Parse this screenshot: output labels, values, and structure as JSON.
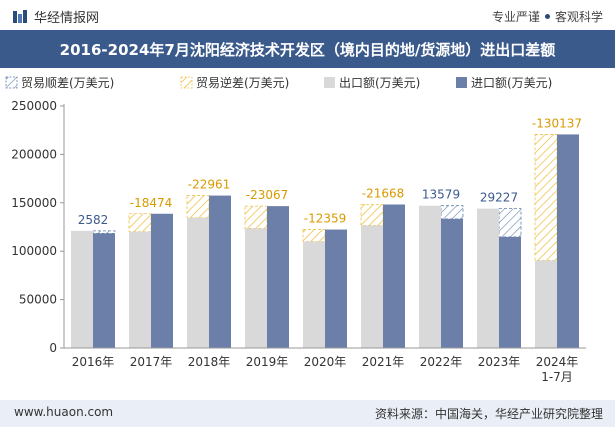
{
  "header": {
    "brand": "华经情报网",
    "tagline_left": "专业严谨",
    "tagline_right": "客观科学"
  },
  "footer": {
    "website": "www.huaon.com",
    "source": "资料来源：中国海关，华经产业研究院整理"
  },
  "colors": {
    "export": "#d9d9d9",
    "import": "#6b7fa8",
    "surplus": "#5f7fae",
    "deficit": "#f0c24a",
    "titlebar": "#3b5a8c"
  },
  "chart_data": {
    "type": "bar",
    "title": "2016-2024年7月沈阳经济技术开发区（境内目的地/货源地）进出口差额",
    "unit": "万美元",
    "categories": [
      "2016年",
      "2017年",
      "2018年",
      "2019年",
      "2020年",
      "2021年",
      "2022年",
      "2023年",
      "2024年\n1-7月"
    ],
    "ylim": [
      0,
      250000
    ],
    "yticks": [
      0,
      50000,
      100000,
      150000,
      200000,
      250000
    ],
    "legend": [
      "贸易顺差(万美元)",
      "贸易逆差(万美元)",
      "出口额(万美元)",
      "进口额(万美元)"
    ],
    "legend_position": "top-left",
    "series": [
      {
        "name": "出口额(万美元)",
        "values": [
          121000,
          120200,
          134500,
          123500,
          110000,
          126600,
          147000,
          144000,
          90500
        ]
      },
      {
        "name": "进口额(万美元)",
        "values": [
          118418,
          138674,
          157461,
          146567,
          122359,
          148268,
          133421,
          114773,
          220637
        ]
      }
    ],
    "balance": [
      2582,
      -18474,
      -22961,
      -23067,
      -12359,
      -21668,
      13579,
      29227,
      -130137
    ],
    "balance_labels": [
      "2582",
      "-18474",
      "-22961",
      "-23067",
      "-12359",
      "-21668",
      "13579",
      "29227",
      "-130137"
    ]
  }
}
